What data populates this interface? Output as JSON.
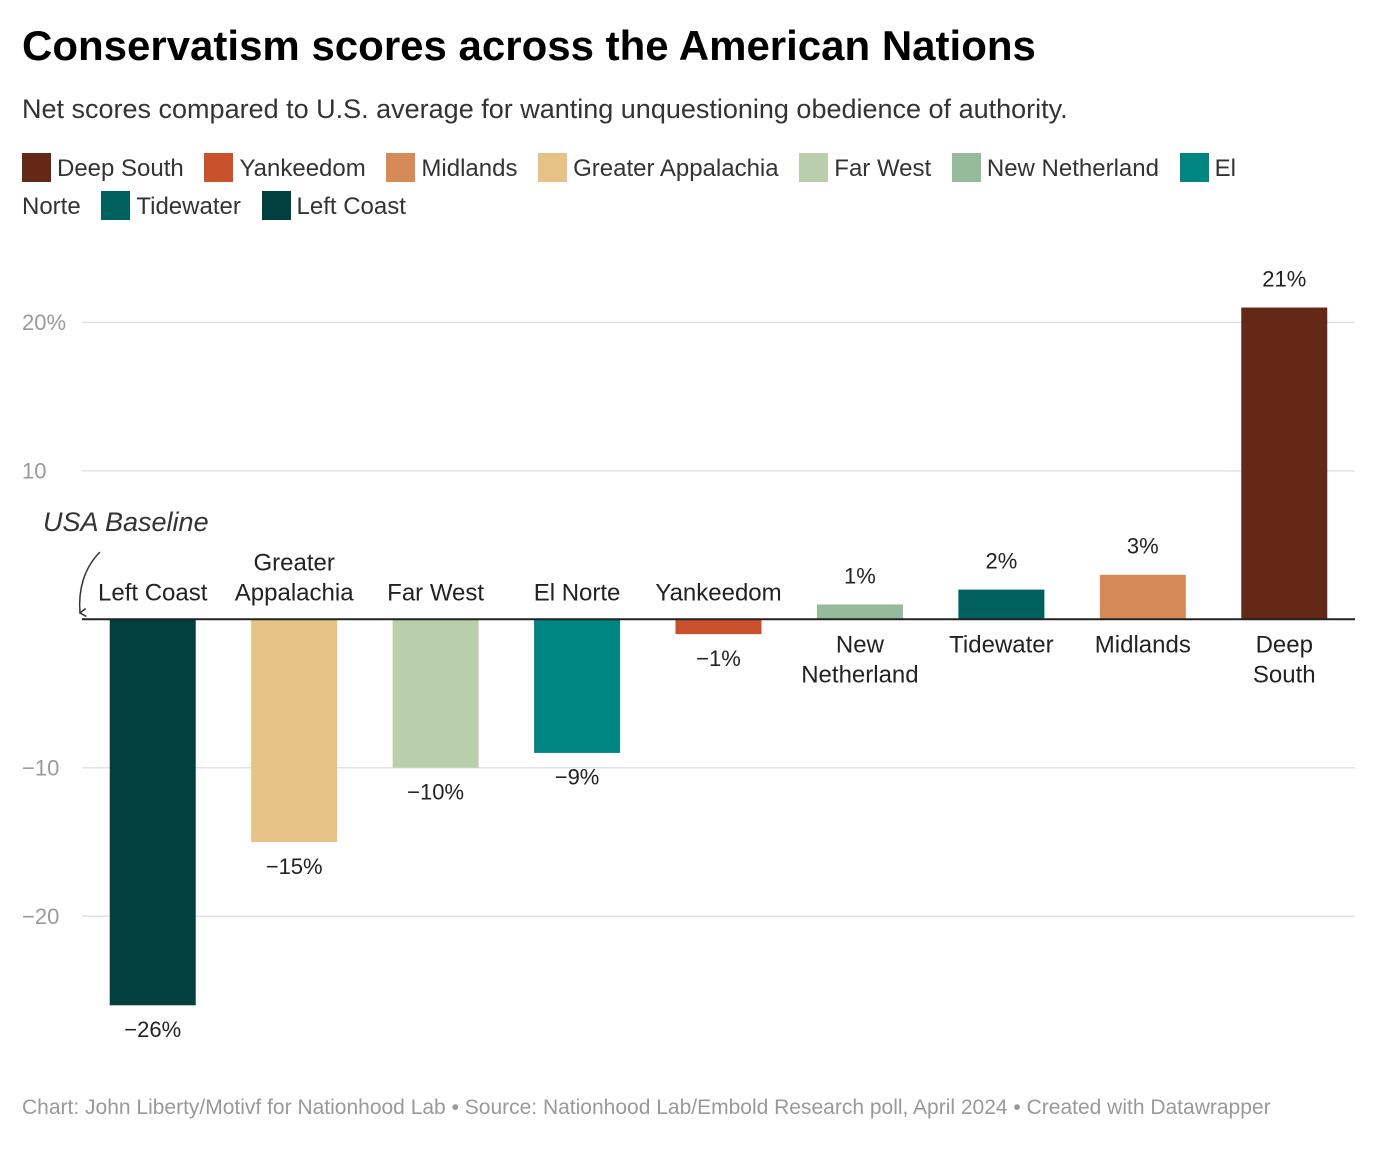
{
  "chart_data": {
    "type": "bar",
    "title": "Conservatism scores across the American Nations",
    "subtitle": "Net scores compared to U.S. average for wanting unquestioning obedience of authority.",
    "legend": [
      {
        "label": "Deep South",
        "color": "#642817"
      },
      {
        "label": "Yankeedom",
        "color": "#c9512b"
      },
      {
        "label": "Midlands",
        "color": "#d68a58"
      },
      {
        "label": "Greater Appalachia",
        "color": "#e6c286"
      },
      {
        "label": "Far West",
        "color": "#b9cfab"
      },
      {
        "label": "New Netherland",
        "color": "#95bb9b"
      },
      {
        "label": "El Norte",
        "color": "#008583"
      },
      {
        "label": "Tidewater",
        "color": "#00615f"
      },
      {
        "label": "Left Coast",
        "color": "#023f3f"
      }
    ],
    "categories": [
      "Left Coast",
      "Greater Appalachia",
      "Far West",
      "El Norte",
      "Yankeedom",
      "New Netherland",
      "Tidewater",
      "Midlands",
      "Deep South"
    ],
    "values": [
      -26,
      -15,
      -10,
      -9,
      -1,
      1,
      2,
      3,
      21
    ],
    "value_labels": [
      "−26%",
      "−15%",
      "−10%",
      "−9%",
      "−1%",
      "1%",
      "2%",
      "3%",
      "21%"
    ],
    "colors": [
      "#023f3f",
      "#e6c286",
      "#b9cfab",
      "#008583",
      "#c9512b",
      "#95bb9b",
      "#00615f",
      "#d68a58",
      "#642817"
    ],
    "ylim": [
      -28,
      24
    ],
    "yticks": [
      {
        "value": -20,
        "label": "−20"
      },
      {
        "value": -10,
        "label": "−10"
      },
      10,
      {
        "value": 20,
        "label": "20%"
      }
    ],
    "grid": true,
    "annotation": "USA Baseline",
    "footer": "Chart: John Liberty/Motivf for Nationhood Lab • Source: Nationhood Lab/Embold Research poll, April 2024 • Created with Datawrapper"
  }
}
